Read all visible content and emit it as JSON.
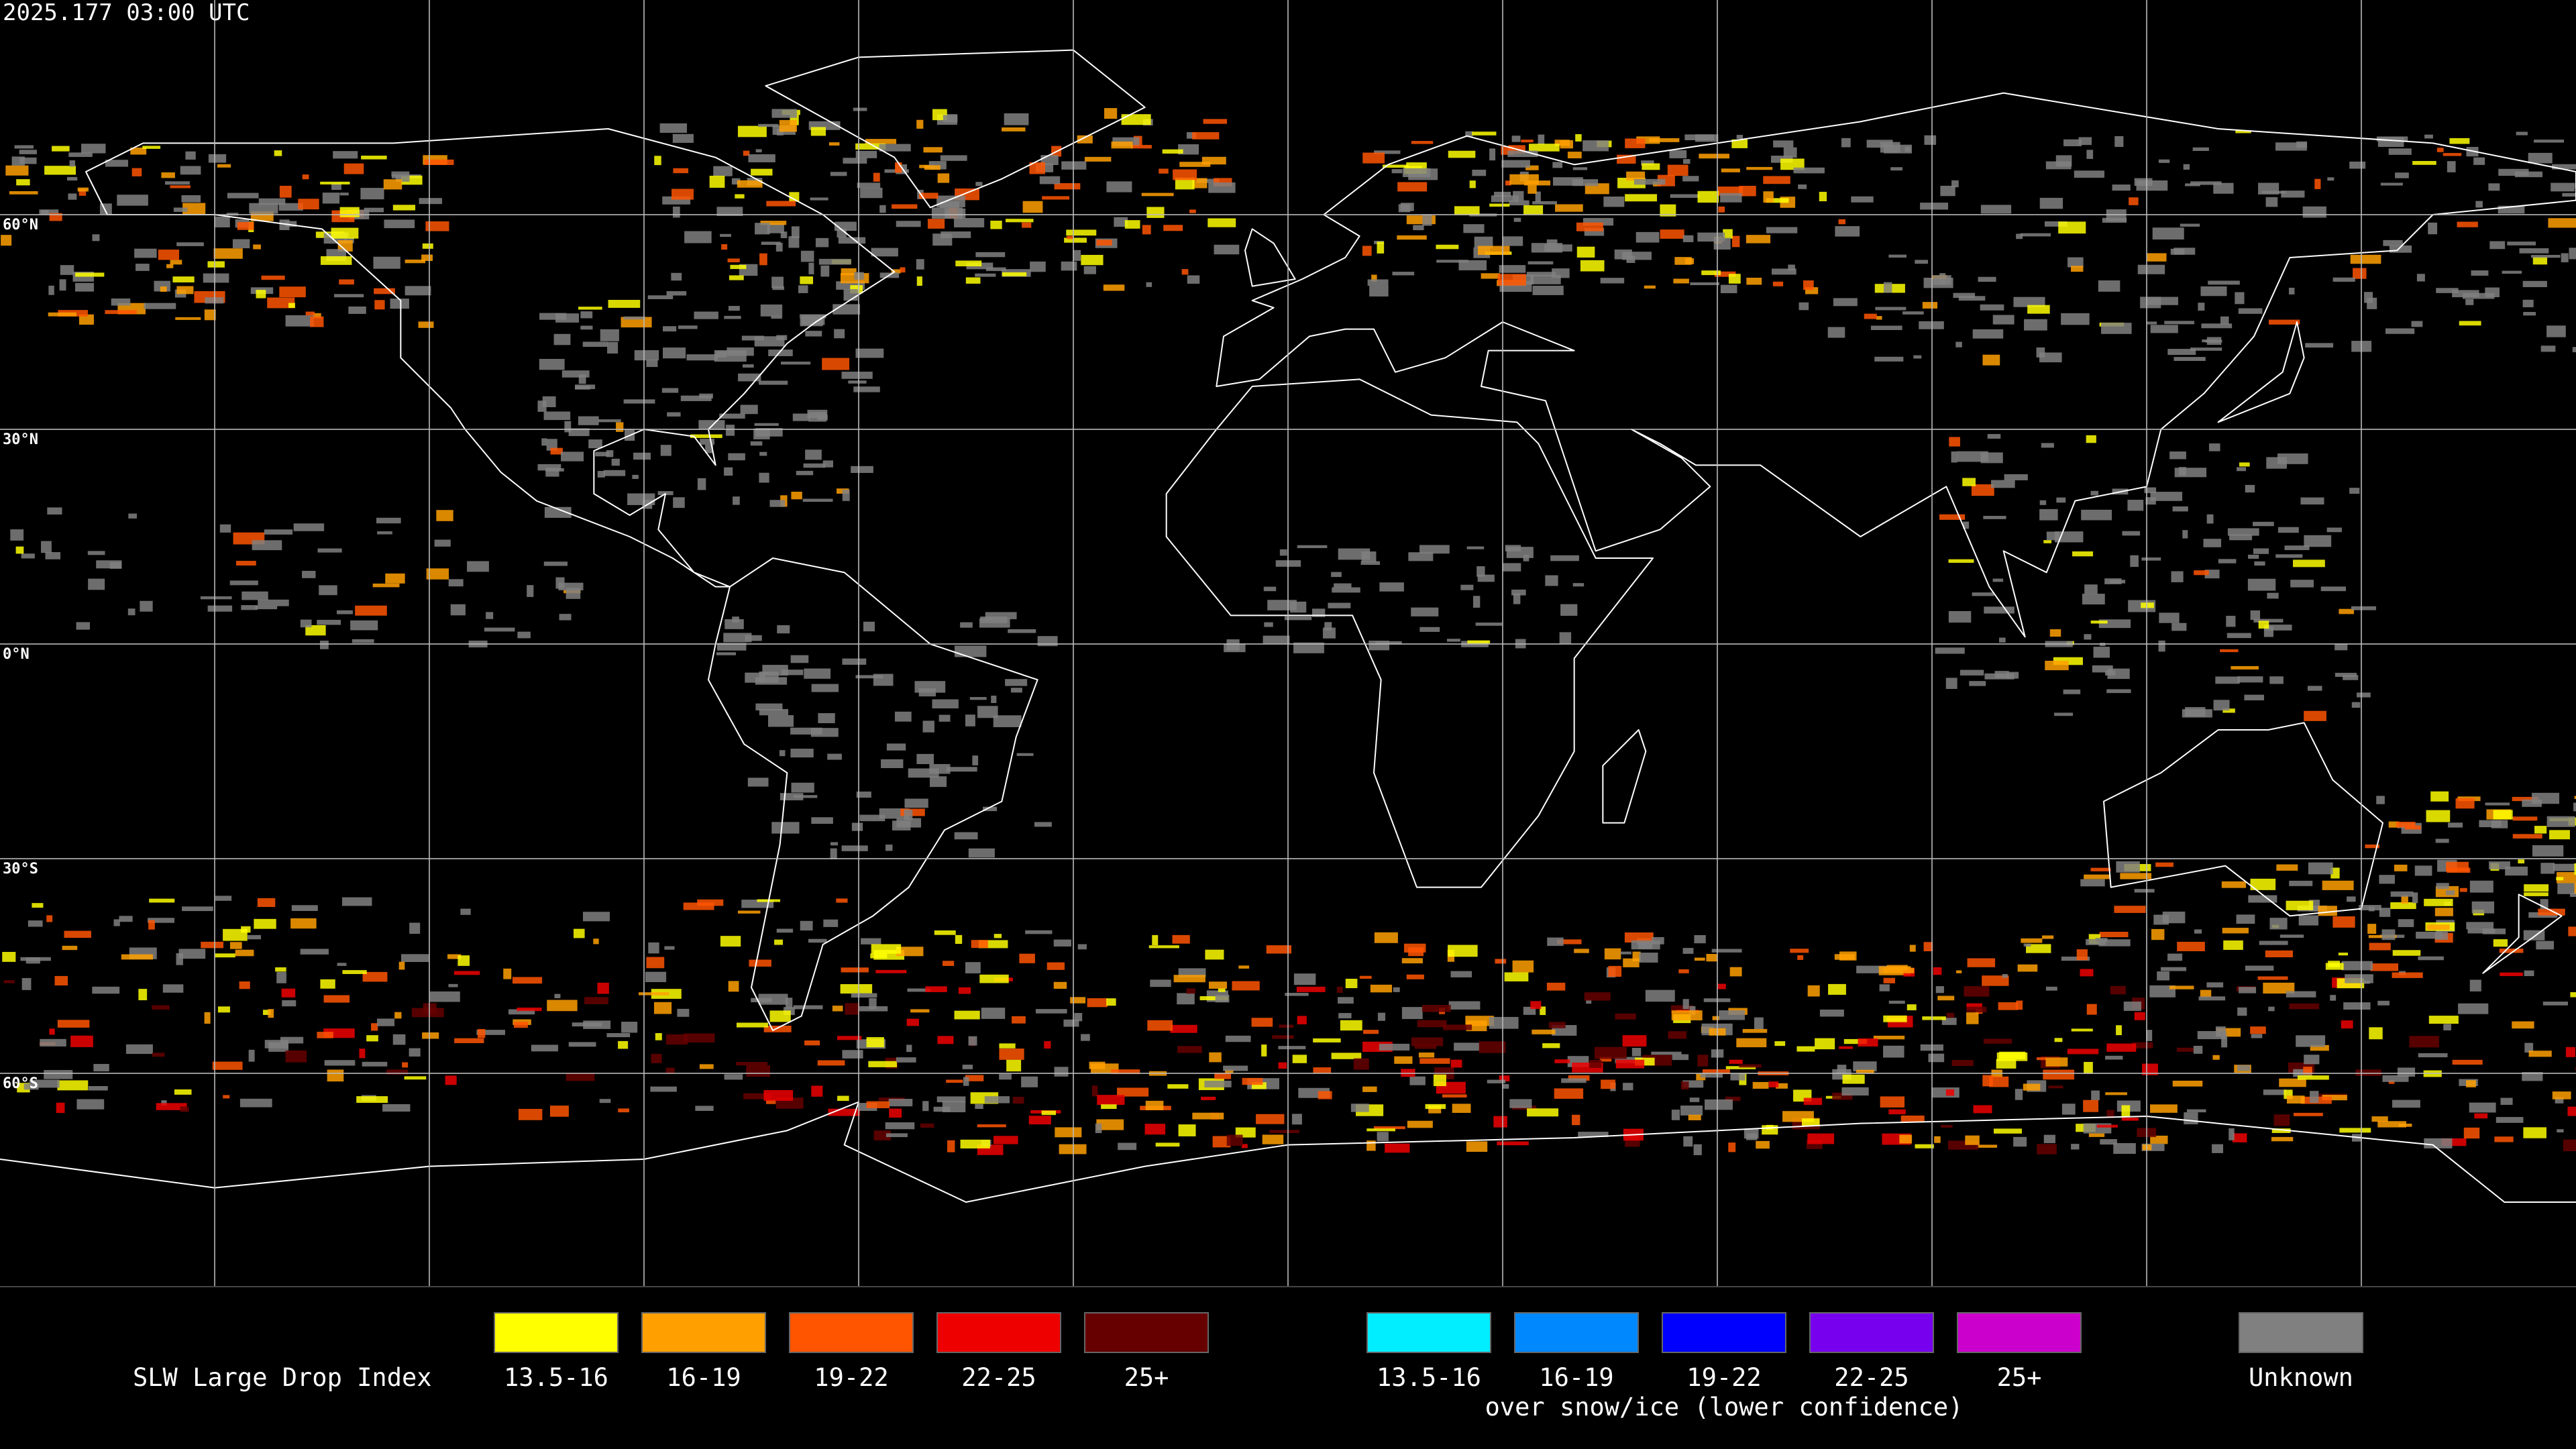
{
  "timestamp": "2025.177 03:00 UTC",
  "map": {
    "latitude_labels": [
      "60°N",
      "30°N",
      "0°N",
      "30°S",
      "60°S"
    ]
  },
  "legend": {
    "title": "SLW Large Drop Index",
    "groups": [
      {
        "items": [
          {
            "label": "13.5-16",
            "color": "#ffff00"
          },
          {
            "label": "16-19",
            "color": "#ffa000"
          },
          {
            "label": "19-22",
            "color": "#ff5500"
          },
          {
            "label": "22-25",
            "color": "#ee0000"
          },
          {
            "label": "25+",
            "color": "#660000"
          }
        ]
      },
      {
        "caption": "over snow/ice (lower confidence)",
        "items": [
          {
            "label": "13.5-16",
            "color": "#00eeff"
          },
          {
            "label": "16-19",
            "color": "#0088ff"
          },
          {
            "label": "19-22",
            "color": "#0000ff"
          },
          {
            "label": "22-25",
            "color": "#7700ee"
          },
          {
            "label": "25+",
            "color": "#cc00cc"
          }
        ]
      },
      {
        "items": [
          {
            "label": "Unknown",
            "color": "#808080"
          }
        ]
      }
    ]
  }
}
